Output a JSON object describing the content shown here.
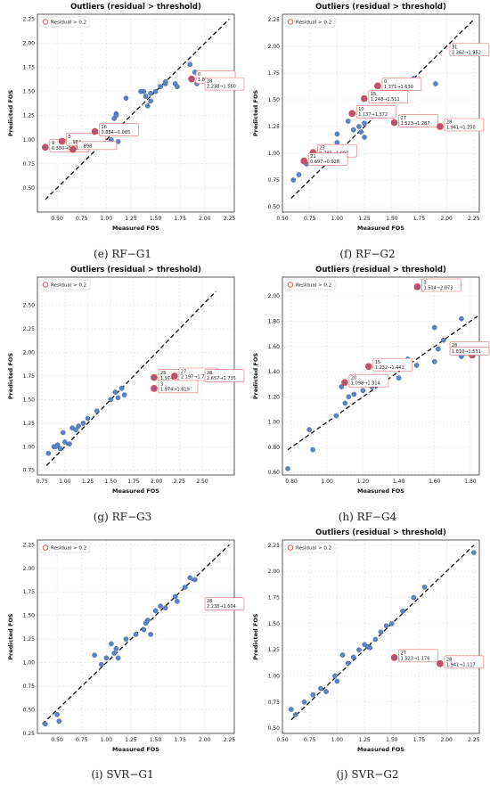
{
  "legend_label": "Residual > 0.2",
  "chart_data": [
    {
      "id": "e",
      "type": "scatter",
      "title": "Outliers (residual > threshold)",
      "caption_letter": "(e)",
      "caption_text": "RF−G1",
      "xlabel": "Measured FOS",
      "ylabel": "Predicted FOS",
      "xlim": [
        0.3,
        2.3
      ],
      "ylim": [
        0.25,
        2.3
      ],
      "xticks": [
        0.5,
        0.75,
        1.0,
        1.25,
        1.5,
        1.75,
        2.0,
        2.25
      ],
      "yticks": [
        0.5,
        0.75,
        1.0,
        1.25,
        1.5,
        1.75,
        2.0,
        2.25
      ],
      "tick_labels_x": [
        "0.50",
        "0.75",
        "1.00",
        "1.25",
        "1.50",
        "1.75",
        "2.00",
        "2.25"
      ],
      "tick_labels_y": [
        "0.50",
        "0.75",
        "1.00",
        "1.25",
        "1.50",
        "1.75",
        "2.00",
        "2.25"
      ],
      "line": [
        [
          0.38,
          0.38
        ],
        [
          2.25,
          2.25
        ]
      ],
      "points": [
        [
          0.38,
          0.92
        ],
        [
          0.55,
          0.98
        ],
        [
          0.88,
          1.09
        ],
        [
          1.0,
          0.93
        ],
        [
          1.05,
          1.0
        ],
        [
          1.08,
          1.22
        ],
        [
          1.1,
          1.27
        ],
        [
          1.12,
          0.98
        ],
        [
          1.2,
          1.43
        ],
        [
          1.38,
          1.5
        ],
        [
          1.4,
          1.45
        ],
        [
          1.42,
          1.35
        ],
        [
          1.45,
          1.48
        ],
        [
          1.5,
          1.5
        ],
        [
          1.55,
          1.55
        ],
        [
          1.6,
          1.58
        ],
        [
          1.7,
          1.58
        ],
        [
          1.72,
          1.55
        ],
        [
          1.85,
          1.78
        ],
        [
          1.9,
          1.7
        ],
        [
          1.92,
          1.58
        ],
        [
          2.1,
          1.62
        ],
        [
          2.24,
          1.56
        ],
        [
          1.87,
          1.63
        ],
        [
          1.45,
          1.4
        ],
        [
          1.35,
          1.5
        ],
        [
          1.1,
          1.25
        ],
        [
          1.6,
          1.6
        ]
      ],
      "outliers": [
        {
          "x": 0.38,
          "y": 0.921,
          "id": "9",
          "text": "0.380→0.921"
        },
        {
          "x": 0.55,
          "y": 0.984,
          "id": "5",
          "text": "…984"
        },
        {
          "x": 0.66,
          "y": 0.898,
          "id": "",
          "text": "…898"
        },
        {
          "x": 0.884,
          "y": 1.085,
          "id": "16",
          "text": "0.884→1.085"
        },
        {
          "x": 1.866,
          "y": 1.629,
          "id": "0",
          "text": "1.866→1.629"
        },
        {
          "x": 2.238,
          "y": 1.56,
          "id": "28",
          "text": "2.238→1.560"
        }
      ]
    },
    {
      "id": "f",
      "type": "scatter",
      "title": "Outliers (residual > threshold)",
      "caption_letter": "(f)",
      "caption_text": "RF−G2",
      "xlabel": "Measured FOS",
      "ylabel": "Predicted FOS",
      "xlim": [
        0.5,
        2.3
      ],
      "ylim": [
        0.45,
        2.3
      ],
      "xticks": [
        0.5,
        0.75,
        1.0,
        1.25,
        1.5,
        1.75,
        2.0,
        2.25
      ],
      "yticks": [
        0.5,
        0.75,
        1.0,
        1.25,
        1.5,
        1.75,
        2.0,
        2.25
      ],
      "tick_labels_x": [
        "0.50",
        "0.75",
        "1.00",
        "1.25",
        "1.50",
        "1.75",
        "2.00",
        "2.25"
      ],
      "tick_labels_y": [
        "0.50",
        "0.75",
        "1.00",
        "1.25",
        "1.50",
        "1.75",
        "2.00",
        "2.25"
      ],
      "line": [
        [
          0.58,
          0.58
        ],
        [
          2.25,
          2.25
        ]
      ],
      "points": [
        [
          0.6,
          0.75
        ],
        [
          0.65,
          0.8
        ],
        [
          0.72,
          0.9
        ],
        [
          0.78,
          1.0
        ],
        [
          0.9,
          1.05
        ],
        [
          1.0,
          1.18
        ],
        [
          1.0,
          1.1
        ],
        [
          1.1,
          1.3
        ],
        [
          1.2,
          1.25
        ],
        [
          1.22,
          1.2
        ],
        [
          1.25,
          1.15
        ],
        [
          1.3,
          1.4
        ],
        [
          1.35,
          1.42
        ],
        [
          1.4,
          1.35
        ],
        [
          1.5,
          1.5
        ],
        [
          1.6,
          1.55
        ],
        [
          1.7,
          1.7
        ],
        [
          1.9,
          1.65
        ],
        [
          1.25,
          1.28
        ],
        [
          1.15,
          1.22
        ]
      ],
      "outliers": [
        {
          "x": 2.262,
          "y": 1.952,
          "id": "31",
          "text": "2.262→1.952"
        },
        {
          "x": 1.371,
          "y": 1.63,
          "id": "0",
          "text": "1.371→1.630"
        },
        {
          "x": 1.248,
          "y": 1.511,
          "id": "15",
          "text": "1.248→1.511"
        },
        {
          "x": 1.137,
          "y": 1.372,
          "id": "10",
          "text": "1.137→1.372"
        },
        {
          "x": 1.523,
          "y": 1.287,
          "id": "27",
          "text": "1.523→1.287"
        },
        {
          "x": 1.941,
          "y": 1.25,
          "id": "28",
          "text": "1.941→1.250"
        },
        {
          "x": 0.78,
          "y": 1.007,
          "id": "23",
          "text": "0.780→1.007"
        },
        {
          "x": 0.697,
          "y": 0.928,
          "id": "21",
          "text": "0.697→0.928"
        }
      ]
    },
    {
      "id": "g",
      "type": "scatter",
      "title": "Outliers (residual > threshold)",
      "caption_letter": "(g)",
      "caption_text": "RF−G3",
      "xlabel": "Measured FOS",
      "ylabel": "Predicted FOS",
      "xlim": [
        0.7,
        2.85
      ],
      "ylim": [
        0.7,
        2.8
      ],
      "xticks": [
        0.75,
        1.0,
        1.25,
        1.5,
        1.75,
        2.0,
        2.25,
        2.5
      ],
      "yticks": [
        0.75,
        1.0,
        1.25,
        1.5,
        1.75,
        2.0,
        2.25,
        2.5
      ],
      "tick_labels_x": [
        "0.75",
        "1.00",
        "1.25",
        "1.50",
        "1.75",
        "2.00",
        "2.25",
        "2.50"
      ],
      "tick_labels_y": [
        "0.75",
        "1.00",
        "1.25",
        "1.50",
        "1.75",
        "2.00",
        "2.25",
        "2.50"
      ],
      "line": [
        [
          0.8,
          0.8
        ],
        [
          2.65,
          2.65
        ]
      ],
      "points": [
        [
          0.82,
          0.93
        ],
        [
          0.88,
          1.0
        ],
        [
          0.92,
          1.02
        ],
        [
          0.95,
          0.98
        ],
        [
          0.98,
          1.15
        ],
        [
          1.0,
          1.05
        ],
        [
          1.05,
          1.03
        ],
        [
          1.08,
          1.2
        ],
        [
          1.12,
          1.18
        ],
        [
          1.2,
          1.25
        ],
        [
          1.25,
          1.3
        ],
        [
          1.35,
          1.38
        ],
        [
          1.5,
          1.5
        ],
        [
          1.55,
          1.58
        ],
        [
          1.58,
          1.52
        ],
        [
          1.62,
          1.62
        ],
        [
          1.65,
          1.55
        ],
        [
          0.9,
          1.0
        ],
        [
          1.15,
          1.22
        ]
      ],
      "outliers": [
        {
          "x": 1.974,
          "y": 1.735,
          "id": "25",
          "text": "1.974→…"
        },
        {
          "x": 1.974,
          "y": 1.619,
          "id": "3",
          "text": "1.974→1.619"
        },
        {
          "x": 2.197,
          "y": 1.75,
          "id": "27",
          "text": "2.197→1.750"
        },
        {
          "x": 2.657,
          "y": 1.735,
          "id": "28",
          "text": "2.657→1.735"
        }
      ]
    },
    {
      "id": "h",
      "type": "scatter",
      "title": "Outliers (residual > threshold)",
      "caption_letter": "(h)",
      "caption_text": "RF−G4",
      "xlabel": "Measured FOS",
      "ylabel": "Predicted FOS",
      "xlim": [
        0.75,
        1.85
      ],
      "ylim": [
        0.58,
        2.15
      ],
      "xticks": [
        0.8,
        1.0,
        1.2,
        1.4,
        1.6,
        1.8
      ],
      "yticks": [
        0.6,
        0.8,
        1.0,
        1.2,
        1.4,
        1.6,
        1.8,
        2.0
      ],
      "tick_labels_x": [
        "0.80",
        "1.00",
        "1.20",
        "1.40",
        "1.60",
        "1.80"
      ],
      "tick_labels_y": [
        "0.60",
        "0.80",
        "1.00",
        "1.20",
        "1.40",
        "1.60",
        "1.80",
        "2.00"
      ],
      "line": [
        [
          0.78,
          0.78
        ],
        [
          1.84,
          1.84
        ]
      ],
      "points": [
        [
          0.78,
          0.63
        ],
        [
          0.9,
          0.94
        ],
        [
          0.92,
          0.78
        ],
        [
          1.05,
          1.05
        ],
        [
          1.1,
          1.15
        ],
        [
          1.12,
          1.2
        ],
        [
          1.15,
          1.22
        ],
        [
          1.2,
          1.25
        ],
        [
          1.25,
          1.28
        ],
        [
          1.3,
          1.3
        ],
        [
          1.4,
          1.35
        ],
        [
          1.45,
          1.5
        ],
        [
          1.5,
          1.45
        ],
        [
          1.6,
          1.48
        ],
        [
          1.62,
          1.58
        ],
        [
          1.65,
          1.65
        ],
        [
          1.7,
          1.55
        ],
        [
          1.75,
          1.52
        ],
        [
          1.75,
          1.82
        ],
        [
          1.6,
          1.75
        ],
        [
          1.08,
          1.28
        ]
      ],
      "outliers": [
        {
          "x": 1.504,
          "y": 2.073,
          "id": "3",
          "text": "1.504→2.073"
        },
        {
          "x": 1.232,
          "y": 1.441,
          "id": "15",
          "text": "1.232→1.441"
        },
        {
          "x": 1.098,
          "y": 1.314,
          "id": "20",
          "text": "1.098→1.314"
        },
        {
          "x": 1.84,
          "y": 1.575,
          "id": "28",
          "text": "1.840→1.575"
        },
        {
          "x": 1.81,
          "y": 1.531,
          "id": "",
          "text": "1.810→1.531"
        }
      ]
    },
    {
      "id": "i",
      "type": "scatter",
      "title": "",
      "caption_letter": "(i)",
      "caption_text": "SVR−G1",
      "xlabel": "Measured FOS",
      "ylabel": "Predicted FOS",
      "xlim": [
        0.3,
        2.3
      ],
      "ylim": [
        0.25,
        2.3
      ],
      "xticks": [
        0.5,
        0.75,
        1.0,
        1.25,
        1.5,
        1.75,
        2.0,
        2.25
      ],
      "yticks": [
        0.25,
        0.5,
        0.75,
        1.0,
        1.25,
        1.5,
        1.75,
        2.0,
        2.25
      ],
      "tick_labels_x": [
        "0.50",
        "0.75",
        "1.00",
        "1.25",
        "1.50",
        "1.75",
        "2.00",
        "2.25"
      ],
      "tick_labels_y": [
        "0.25",
        "0.50",
        "0.75",
        "1.00",
        "1.25",
        "1.50",
        "1.75",
        "2.00",
        "2.25"
      ],
      "line": [
        [
          0.35,
          0.35
        ],
        [
          2.25,
          2.25
        ]
      ],
      "points": [
        [
          0.38,
          0.35
        ],
        [
          0.5,
          0.45
        ],
        [
          0.52,
          0.38
        ],
        [
          0.88,
          1.08
        ],
        [
          0.95,
          0.98
        ],
        [
          1.0,
          1.05
        ],
        [
          1.05,
          1.2
        ],
        [
          1.08,
          1.1
        ],
        [
          1.1,
          1.15
        ],
        [
          1.12,
          1.05
        ],
        [
          1.2,
          1.25
        ],
        [
          1.3,
          1.3
        ],
        [
          1.38,
          1.35
        ],
        [
          1.42,
          1.45
        ],
        [
          1.45,
          1.3
        ],
        [
          1.5,
          1.55
        ],
        [
          1.55,
          1.6
        ],
        [
          1.6,
          1.58
        ],
        [
          1.7,
          1.7
        ],
        [
          1.8,
          1.8
        ],
        [
          1.85,
          1.9
        ],
        [
          1.9,
          1.88
        ],
        [
          1.72,
          1.65
        ],
        [
          1.4,
          1.42
        ]
      ],
      "outliers": [
        {
          "x": 2.238,
          "y": 1.604,
          "id": "28",
          "text": "2.238→1.604"
        }
      ]
    },
    {
      "id": "j",
      "type": "scatter",
      "title": "Outliers (residual > threshold)",
      "caption_letter": "(j)",
      "caption_text": "SVR−G2",
      "xlabel": "Measured FOS",
      "ylabel": "Predicted FOS",
      "xlim": [
        0.5,
        2.3
      ],
      "ylim": [
        0.45,
        2.3
      ],
      "xticks": [
        0.5,
        0.75,
        1.0,
        1.25,
        1.5,
        1.75,
        2.0,
        2.25
      ],
      "yticks": [
        0.5,
        0.75,
        1.0,
        1.25,
        1.5,
        1.75,
        2.0,
        2.25
      ],
      "tick_labels_x": [
        "0.50",
        "0.75",
        "1.00",
        "1.25",
        "1.50",
        "1.75",
        "2.00",
        "2.25"
      ],
      "tick_labels_y": [
        "0.50",
        "0.75",
        "1.00",
        "1.25",
        "1.50",
        "1.75",
        "2.00",
        "2.25"
      ],
      "line": [
        [
          0.58,
          0.58
        ],
        [
          2.25,
          2.25
        ]
      ],
      "points": [
        [
          0.58,
          0.68
        ],
        [
          0.62,
          0.63
        ],
        [
          0.7,
          0.75
        ],
        [
          0.78,
          0.82
        ],
        [
          0.85,
          0.88
        ],
        [
          0.9,
          0.85
        ],
        [
          0.98,
          1.0
        ],
        [
          1.0,
          0.95
        ],
        [
          1.05,
          1.2
        ],
        [
          1.1,
          1.12
        ],
        [
          1.2,
          1.25
        ],
        [
          1.25,
          1.3
        ],
        [
          1.28,
          1.28
        ],
        [
          1.3,
          1.27
        ],
        [
          1.35,
          1.35
        ],
        [
          1.4,
          1.42
        ],
        [
          1.45,
          1.48
        ],
        [
          1.5,
          1.5
        ],
        [
          1.6,
          1.62
        ],
        [
          1.7,
          1.75
        ],
        [
          1.8,
          1.85
        ],
        [
          2.25,
          2.18
        ],
        [
          1.15,
          1.18
        ]
      ],
      "outliers": [
        {
          "x": 1.523,
          "y": 1.176,
          "id": "27",
          "text": "1.523→1.176"
        },
        {
          "x": 1.941,
          "y": 1.117,
          "id": "28",
          "text": "1.941→1.117"
        }
      ]
    }
  ]
}
